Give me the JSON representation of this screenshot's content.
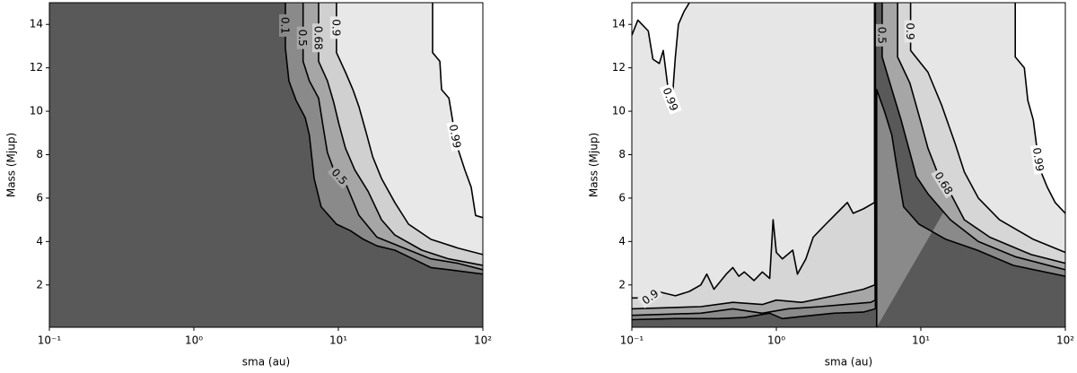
{
  "chart_data": [
    {
      "type": "contour",
      "xlabel": "sma (au)",
      "ylabel": "Mass (Mjup)",
      "xscale": "log",
      "xlim": [
        0.1,
        100
      ],
      "ylim": [
        0.05,
        15
      ],
      "xticks": [
        {
          "value": 0.1,
          "label": "10⁻¹"
        },
        {
          "value": 1,
          "label": "10⁰"
        },
        {
          "value": 10,
          "label": "10¹"
        },
        {
          "value": 100,
          "label": "10²"
        }
      ],
      "yticks": [
        2,
        4,
        6,
        8,
        10,
        12,
        14
      ],
      "base_color": "#595959",
      "levels": [
        {
          "level": 0.1,
          "color": "#8a8a8a",
          "pieces": [
            {
              "x": [
                4.3,
                4.3,
                4.55,
                5.1,
                5.9,
                6.3,
                6.6,
                6.8,
                7.6,
                9.7,
                12.1,
                14.9,
                18.5,
                24.6,
                32.8,
                43.7,
                58,
                100
              ],
              "y": [
                15,
                12.9,
                11.4,
                10.5,
                9.7,
                8.9,
                7.7,
                6.9,
                5.6,
                4.8,
                4.5,
                4.1,
                3.8,
                3.6,
                3.2,
                2.8,
                2.7,
                2.5
              ]
            }
          ]
        },
        {
          "level": 0.5,
          "color": "#a6a6a6",
          "pieces": [
            {
              "x": [
                5.7,
                5.7,
                6.3,
                7.3,
                7.8,
                8.4,
                9.3,
                11.2,
                13.9,
                18.5,
                28.4,
                43.7,
                67,
                100
              ],
              "y": [
                15,
                12.3,
                11.4,
                10.6,
                9.4,
                8.1,
                7.3,
                6.7,
                5.2,
                4.2,
                3.7,
                3.2,
                3.0,
                2.7
              ]
            }
          ]
        },
        {
          "level": 0.68,
          "color": "#d0d0d0",
          "pieces": [
            {
              "x": [
                7.3,
                7.3,
                8.4,
                9.3,
                10.1,
                11.2,
                13.0,
                16.1,
                19.9,
                24.6,
                37.8,
                58,
                100
              ],
              "y": [
                15,
                12.3,
                11.4,
                10.4,
                9.4,
                8.3,
                7.3,
                6.3,
                5.0,
                4.3,
                3.6,
                3.2,
                2.9
              ]
            }
          ]
        },
        {
          "level": 0.9,
          "color": "#e8e8e8",
          "pieces": [
            {
              "x": [
                9.7,
                9.7,
                11.2,
                12.6,
                13.9,
                15.6,
                17.3,
                19.9,
                24.6,
                30.6,
                43.7,
                67,
                100
              ],
              "y": [
                15,
                12.7,
                11.8,
                11.0,
                10.2,
                9.0,
                7.9,
                6.9,
                5.8,
                4.8,
                4.1,
                3.7,
                3.4
              ]
            }
          ]
        },
        {
          "level": 0.99,
          "color": "#ffffff",
          "pieces": [
            {
              "x": [
                44.9,
                44.9,
                50.4,
                51.8,
                58.2,
                62.4,
                67,
                75,
                83,
                89,
                100
              ],
              "y": [
                15,
                12.7,
                12.3,
                11.0,
                10.6,
                9.4,
                8.3,
                7.3,
                6.5,
                5.2,
                5.1
              ]
            }
          ]
        }
      ]
    },
    {
      "type": "contour",
      "xlabel": "sma (au)",
      "ylabel": "Mass (Mjup)",
      "xscale": "log",
      "xlim": [
        0.1,
        100
      ],
      "ylim": [
        0.05,
        15
      ],
      "xticks": [
        {
          "value": 0.1,
          "label": "10⁻¹"
        },
        {
          "value": 1,
          "label": "10⁰"
        },
        {
          "value": 10,
          "label": "10¹"
        },
        {
          "value": 100,
          "label": "10²"
        }
      ],
      "yticks": [
        2,
        4,
        6,
        8,
        10,
        12,
        14
      ],
      "base_color": "#595959",
      "levels": [
        {
          "level": 0.1,
          "color": "#8a8a8a",
          "pieces": [
            {
              "x": [
                0.1,
                0.2,
                0.4,
                0.6,
                0.9,
                1.1,
                1.5,
                2.5,
                4.0,
                4.85,
                4.85
              ],
              "y": [
                0.4,
                0.45,
                0.45,
                0.5,
                0.7,
                0.45,
                0.55,
                0.7,
                0.75,
                0.9,
                15
              ]
            },
            {
              "x": [
                4.95,
                4.95,
                5.6,
                6.3,
                6.8,
                7.6,
                9.7,
                14.9,
                24.6,
                43.7,
                100
              ],
              "y": [
                0.05,
                11.0,
                10.0,
                8.9,
                7.5,
                5.6,
                4.8,
                4.1,
                3.6,
                2.9,
                2.4
              ]
            }
          ]
        },
        {
          "level": 0.5,
          "color": "#a6a6a6",
          "pieces": [
            {
              "x": [
                0.1,
                0.3,
                0.5,
                0.8,
                1.2,
                2,
                3,
                4.5,
                4.83,
                4.83
              ],
              "y": [
                0.6,
                0.7,
                0.9,
                0.7,
                0.9,
                1.0,
                1.1,
                1.2,
                1.3,
                15
              ]
            },
            {
              "x": [
                5.4,
                5.4,
                6.3,
                7.3,
                8.4,
                9.3,
                11.2,
                16,
                25,
                45,
                100
              ],
              "y": [
                15,
                12.5,
                11.0,
                9.6,
                8.1,
                7.0,
                6.2,
                5.0,
                4.0,
                3.3,
                2.7
              ]
            }
          ]
        },
        {
          "level": 0.68,
          "color": "#d6d6d6",
          "pieces": [
            {
              "x": [
                0.1,
                0.3,
                0.5,
                0.8,
                1.0,
                1.5,
                2.5,
                4,
                4.8,
                4.8
              ],
              "y": [
                0.9,
                1.0,
                1.2,
                1.1,
                1.3,
                1.2,
                1.5,
                1.8,
                2.0,
                15
              ]
            },
            {
              "x": [
                6.9,
                6.9,
                8.4,
                10.1,
                11.2,
                13,
                16.1,
                20,
                30,
                58,
                100
              ],
              "y": [
                15,
                12.5,
                11.3,
                9.4,
                8.3,
                7.2,
                6.2,
                5.0,
                4.2,
                3.4,
                3.0
              ]
            }
          ]
        },
        {
          "level": 0.9,
          "color": "#e6e6e6",
          "pieces": [
            {
              "x": [
                0.1,
                0.13,
                0.15,
                0.2,
                0.25,
                0.3,
                0.33,
                0.37,
                0.45,
                0.5,
                0.55,
                0.6,
                0.7,
                0.8,
                0.9,
                0.95,
                1.0,
                1.1,
                1.3,
                1.4,
                1.6,
                1.8,
                2.2,
                2.8,
                3.1,
                3.4,
                4.0,
                4.78,
                4.78
              ],
              "y": [
                1.4,
                1.4,
                1.7,
                1.5,
                1.7,
                2.0,
                2.5,
                1.8,
                2.5,
                2.8,
                2.4,
                2.6,
                2.2,
                2.6,
                2.3,
                5.0,
                3.5,
                3.2,
                3.6,
                2.5,
                3.2,
                4.2,
                4.8,
                5.5,
                5.8,
                5.3,
                5.5,
                5.8,
                15
              ]
            },
            {
              "x": [
                8.5,
                8.5,
                11.2,
                13.9,
                17.3,
                20,
                25,
                35,
                60,
                100
              ],
              "y": [
                15,
                12.8,
                11.8,
                10.3,
                8.5,
                7.2,
                6.0,
                5.0,
                4.1,
                3.5
              ]
            }
          ]
        },
        {
          "level": 0.99,
          "color": "#ffffff",
          "pieces": [
            {
              "x": [
                0.1,
                0.11,
                0.13,
                0.14,
                0.155,
                0.165,
                0.18,
                0.19,
                0.195,
                0.2,
                0.21,
                0.23,
                0.25
              ],
              "y": [
                13.5,
                14.2,
                13.7,
                12.4,
                12.2,
                12.8,
                10.8,
                10.4,
                11.5,
                12.5,
                14,
                14.6,
                15
              ]
            },
            {
              "x": [
                45,
                45,
                52,
                55,
                60,
                63,
                67,
                75,
                85,
                100
              ],
              "y": [
                15,
                12.5,
                12.0,
                10.5,
                9.6,
                8.5,
                7.3,
                6.5,
                5.8,
                5.3
              ]
            }
          ]
        }
      ]
    }
  ]
}
